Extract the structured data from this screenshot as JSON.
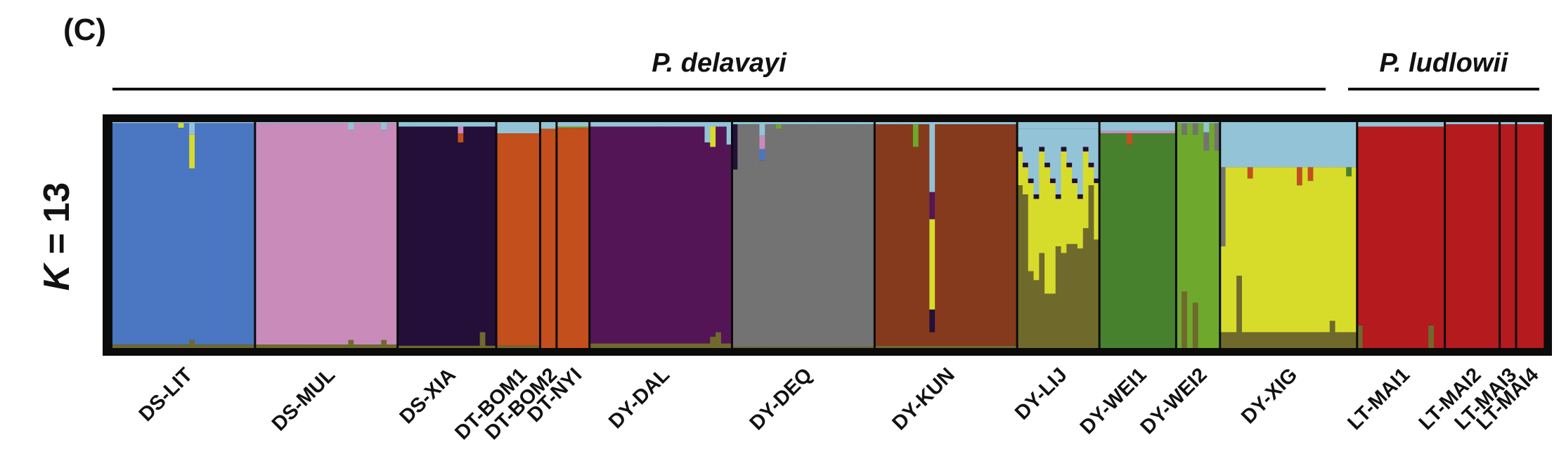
{
  "panel_label": "(C)",
  "colors": {
    "blue": "#4a76c2",
    "pink": "#c98cba",
    "darkpurple": "#230f38",
    "orange": "#c24f1c",
    "purple": "#541557",
    "gray": "#737373",
    "brown": "#863a1d",
    "olive": "#6f6a2c",
    "lightblue": "#93c3d6",
    "darkgreen": "#48812e",
    "green": "#6ea82d",
    "yellow": "#d7dc2a",
    "red": "#b41a1e"
  },
  "chart_data": {
    "type": "bar",
    "stacked": true,
    "normalized": true,
    "ylabel_prefix": "K",
    "ylabel_suffix": " = 13",
    "ylim": [
      0,
      1
    ],
    "species": [
      {
        "name": "P. delavayi",
        "populations": [
          "DS-LIT",
          "DS-MUL",
          "DS-XIA",
          "DT-BOM1",
          "DT-BOM2",
          "DT-NYI",
          "DY-DAL",
          "DY-DEQ",
          "DY-KUN",
          "DY-LIJ",
          "DY-WEI1",
          "DY-WEI2",
          "DY-XIG"
        ]
      },
      {
        "name": "P. ludlowii",
        "populations": [
          "LT-MAI1",
          "LT-MAI2",
          "LT-MAI3",
          "LT-MAI4"
        ]
      }
    ],
    "populations": [
      {
        "label": "DS-LIT",
        "n": 26,
        "dominant": "blue",
        "minor": {
          "lightblue": 0.005,
          "olive": 0.015
        },
        "individuals": {
          "14": {
            "yellow": 0.15,
            "lightblue": 0.05,
            "olive": 0.02
          },
          "12": {
            "yellow": 0.02
          }
        }
      },
      {
        "label": "DS-MUL",
        "n": 26,
        "dominant": "pink",
        "minor": {
          "olive": 0.015,
          "lightblue": 0.005
        },
        "individuals": {
          "17": {
            "lightblue": 0.03,
            "olive": 0.02
          },
          "23": {
            "lightblue": 0.03,
            "olive": 0.02
          }
        }
      },
      {
        "label": "DS-XIA",
        "n": 18,
        "dominant": "darkpurple",
        "minor": {
          "lightblue": 0.02,
          "olive": 0.01
        },
        "individuals": {
          "11": {
            "pink": 0.03,
            "orange": 0.04
          },
          "11b": {},
          "15": {
            "olive": 0.06
          }
        }
      },
      {
        "label": "DT-BOM1",
        "n": 8,
        "dominant": "orange",
        "minor": {
          "lightblue": 0.05,
          "olive": 0.01
        },
        "individuals": {}
      },
      {
        "label": "DT-BOM2",
        "n": 3,
        "dominant": "orange",
        "minor": {
          "lightblue": 0.03
        },
        "individuals": {}
      },
      {
        "label": "DT-NYI",
        "n": 6,
        "dominant": "orange",
        "minor": {
          "lightblue": 0.02,
          "green": 0.005
        },
        "individuals": {}
      },
      {
        "label": "DY-DAL",
        "n": 26,
        "dominant": "purple",
        "minor": {
          "lightblue": 0.02,
          "olive": 0.02
        },
        "individuals": {
          "21": {
            "lightblue": 0.07
          },
          "22": {
            "yellow": 0.09,
            "olive": 0.03
          },
          "23": {
            "olive": 0.05
          },
          "25": {
            "lightblue": 0.08
          }
        }
      },
      {
        "label": "DY-DEQ",
        "n": 26,
        "dominant": "gray",
        "minor": {
          "lightblue": 0.01,
          "olive": 0.005
        },
        "individuals": {
          "0": {
            "darkpurple": 0.2
          },
          "5": {
            "pink": 0.06,
            "blue": 0.05,
            "lightblue": 0.05
          },
          "8": {
            "green": 0.02
          }
        }
      },
      {
        "label": "DY-KUN",
        "n": 26,
        "dominant": "brown",
        "minor": {
          "lightblue": 0.01,
          "olive": 0.01
        },
        "individuals": {
          "7": {
            "green": 0.1
          },
          "10": {
            "lightblue": 0.3,
            "purple": 0.12,
            "yellow": 0.4,
            "darkpurple": 0.1
          }
        }
      },
      {
        "label": "DY-LIJ",
        "n": 15,
        "dominant": "olive",
        "minor": {
          "lightblue": 0.03
        },
        "profile": [
          0.72,
          0.68,
          0.34,
          0.3,
          0.42,
          0.24,
          0.24,
          0.45,
          0.42,
          0.46,
          0.46,
          0.44,
          0.53,
          0.72,
          0.48
        ]
      },
      {
        "label": "DY-WEI1",
        "n": 14,
        "dominant": "darkgreen",
        "minor": {
          "lightblue": 0.04,
          "pink": 0.01
        },
        "individuals": {
          "5": {
            "orange": 0.05
          }
        }
      },
      {
        "label": "DY-WEI2",
        "n": 8,
        "dominant": "green",
        "minor": {
          "lightblue": 0.005
        },
        "individuals": {
          "1": {
            "gray": 0.05,
            "olive": 0.25
          },
          "3": {
            "gray": 0.05,
            "olive": 0.2
          },
          "5": {
            "gray": 0.08,
            "lightblue": 0.04
          },
          "7": {
            "gray": 0.12
          }
        }
      },
      {
        "label": "DY-XIG",
        "n": 25,
        "dominant": "yellow",
        "minor": {
          "lightblue": 0.2,
          "olive": 0.07
        },
        "individuals": {
          "0": {
            "gray": 0.35
          },
          "3": {
            "olive": 0.25
          },
          "5": {
            "orange": 0.05
          },
          "14": {
            "orange": 0.08
          },
          "16": {
            "orange": 0.06
          },
          "20": {
            "olive": 0.05
          },
          "23": {
            "darkgreen": 0.04
          }
        }
      },
      {
        "label": "LT-MAI1",
        "n": 16,
        "dominant": "red",
        "minor": {
          "lightblue": 0.02
        },
        "individuals": {
          "0": {
            "olive": 0.1
          },
          "13": {
            "olive": 0.1
          }
        }
      },
      {
        "label": "LT-MAI2",
        "n": 10,
        "dominant": "red",
        "minor": {
          "lightblue": 0.01
        },
        "individuals": {}
      },
      {
        "label": "LT-MAI3",
        "n": 3,
        "dominant": "red",
        "minor": {
          "lightblue": 0.01
        },
        "individuals": {}
      },
      {
        "label": "LT-MAI4",
        "n": 5,
        "dominant": "red",
        "minor": {
          "lightblue": 0.01
        },
        "individuals": {}
      }
    ]
  }
}
